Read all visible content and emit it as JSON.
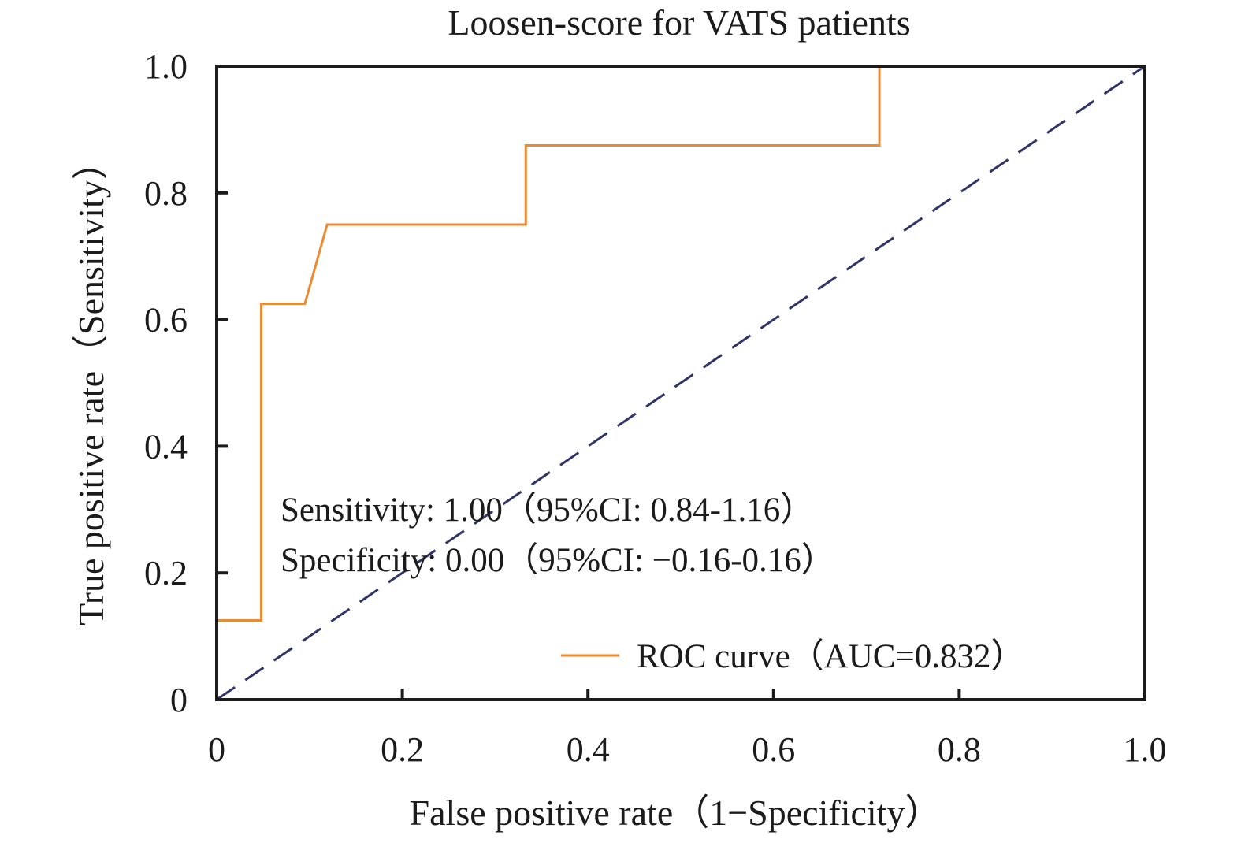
{
  "chart_data": {
    "type": "line",
    "title": "Loosen-score for VATS patients",
    "xlabel": "False positive rate（1−Specificity）",
    "ylabel": "True positive rate（Sensitivity）",
    "xlim": [
      0,
      1.0
    ],
    "ylim": [
      0,
      1.0
    ],
    "x_ticks": [
      0,
      0.2,
      0.4,
      0.6,
      0.8,
      1.0
    ],
    "x_tick_labels": [
      "0",
      "0.2",
      "0.4",
      "0.6",
      "0.8",
      "1.0"
    ],
    "y_ticks": [
      0,
      0.2,
      0.4,
      0.6,
      0.8,
      1.0
    ],
    "y_tick_labels": [
      "0",
      "0.2",
      "0.4",
      "0.6",
      "0.8",
      "1.0"
    ],
    "grid": false,
    "legend_position": "bottom-right",
    "annotations": [
      "Sensitivity: 1.00（95%CI: 0.84-1.16）",
      "Specificity: 0.00（95%CI: −0.16-0.16）"
    ],
    "series": [
      {
        "name": "ROC curve（AUC=0.832）",
        "color": "#ec8a32",
        "style": "solid",
        "x": [
          0,
          0.048,
          0.048,
          0.095,
          0.119,
          0.333,
          0.333,
          0.714,
          0.714,
          1.0
        ],
        "y": [
          0.125,
          0.125,
          0.625,
          0.625,
          0.75,
          0.75,
          0.875,
          0.875,
          1.0,
          1.0
        ]
      },
      {
        "color": "#2f3566",
        "style": "dashed",
        "x": [
          0,
          1.0
        ],
        "y": [
          0,
          1.0
        ]
      }
    ]
  }
}
